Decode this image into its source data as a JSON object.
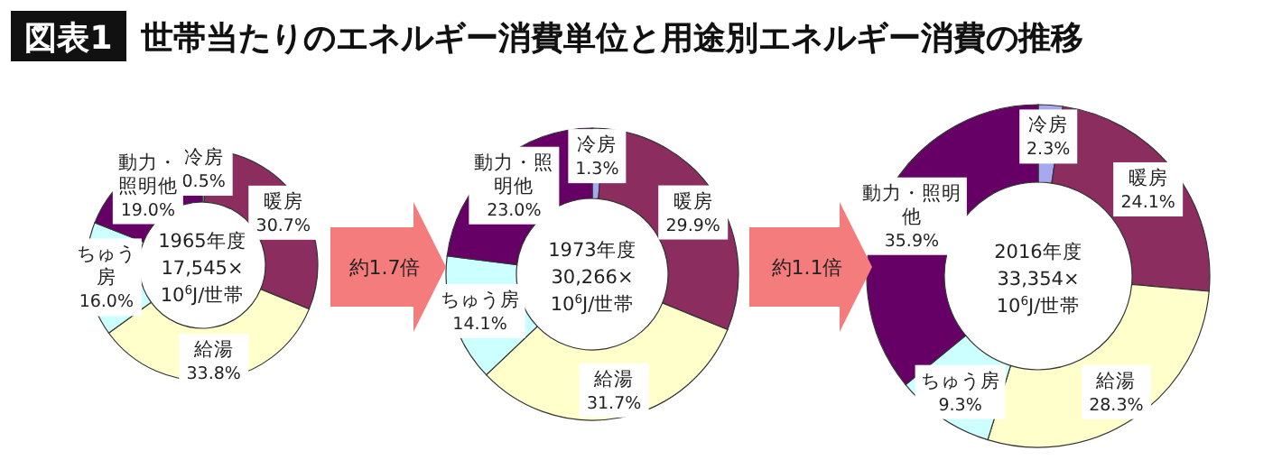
{
  "chart_data": [
    {
      "type": "donut",
      "title": "1965年度",
      "subtitle": "17,545×10$^{6}$J/世帯",
      "annotations": [
        "図表1",
        "世帯当たりのエネルギー消費単位と用途別エネルギー消費の推移"
      ],
      "legend": false,
      "categories": [
        "冷房",
        "暖房",
        "給湯",
        "ちゅう房",
        "動力・照明他"
      ],
      "values": [
        0.5,
        30.7,
        33.8,
        16.0,
        19.0
      ],
      "value_labels": [
        "0.5%",
        "30.7%",
        "33.8%",
        "16.0%",
        "19.0%"
      ],
      "colors": [
        "#a8a8ee",
        "#8c2d60",
        "#ffffcc",
        "#ccffff",
        "#660066"
      ]
    },
    {
      "type": "donut",
      "title": "1973年度",
      "subtitle": "30,266×10$^{6}$J/世帯",
      "annotations": [
        "約1.7倍"
      ],
      "legend": false,
      "categories": [
        "冷房",
        "暖房",
        "給湯",
        "ちゅう房",
        "動力・照明他"
      ],
      "values": [
        1.3,
        29.9,
        31.7,
        14.1,
        23.0
      ],
      "value_labels": [
        "1.3%",
        "29.9%",
        "31.7%",
        "14.1%",
        "23.0%"
      ],
      "colors": [
        "#a8a8ee",
        "#8c2d60",
        "#ffffcc",
        "#ccffff",
        "#660066"
      ]
    },
    {
      "type": "donut",
      "title": "2016年度",
      "subtitle": "33,354×10$^{6}$J/世帯",
      "annotations": [
        "約1.1倍"
      ],
      "legend": false,
      "categories": [
        "冷房",
        "暖房",
        "給湯",
        "ちゅう房",
        "動力・照明他"
      ],
      "values": [
        2.3,
        24.1,
        28.3,
        9.3,
        35.9
      ],
      "value_labels": [
        "2.3%",
        "24.1%",
        "28.3%",
        "9.3%",
        "35.9%"
      ],
      "colors": [
        "#a8a8ee",
        "#8c2d60",
        "#ffffcc",
        "#ccffff",
        "#660066"
      ]
    }
  ]
}
